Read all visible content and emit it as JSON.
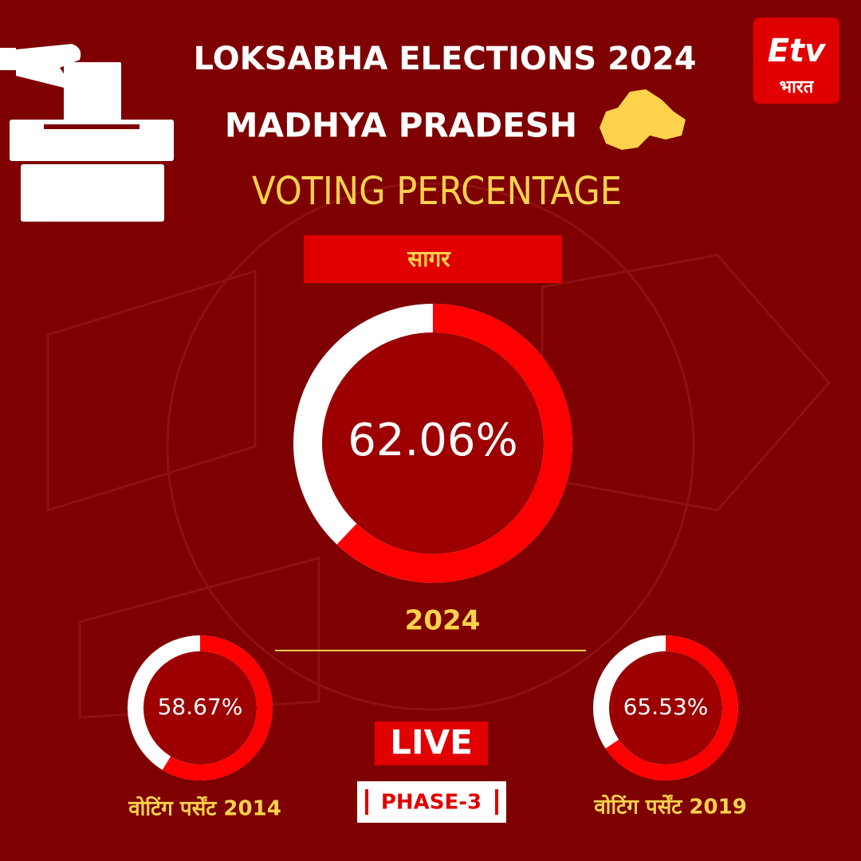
{
  "header": {
    "title": "LOKSABHA ELECTIONS 2024",
    "subtitle": "MADHYA PRADESH",
    "heading": "VOTING PERCENTAGE",
    "constituency": "सागर",
    "logo_mark": "Etv",
    "logo_text": "भारत",
    "live": "LIVE",
    "phase": "PHASE-3"
  },
  "chart_data": [
    {
      "type": "donut",
      "title": "2024",
      "values": [
        62.06
      ],
      "value_labels": [
        "62.06%"
      ],
      "ylim": [
        0,
        100
      ],
      "color": "#ff0000",
      "track_color": "#ffffff"
    },
    {
      "type": "donut",
      "title": "वोटिंग पर्सेंट 2014",
      "values": [
        58.67
      ],
      "value_labels": [
        "58.67%"
      ],
      "ylim": [
        0,
        100
      ],
      "color": "#ff0000",
      "track_color": "#ffffff"
    },
    {
      "type": "donut",
      "title": "वोटिंग पर्सेंट 2019",
      "values": [
        65.53
      ],
      "value_labels": [
        "65.53%"
      ],
      "ylim": [
        0,
        100
      ],
      "color": "#ff0000",
      "track_color": "#ffffff"
    }
  ]
}
